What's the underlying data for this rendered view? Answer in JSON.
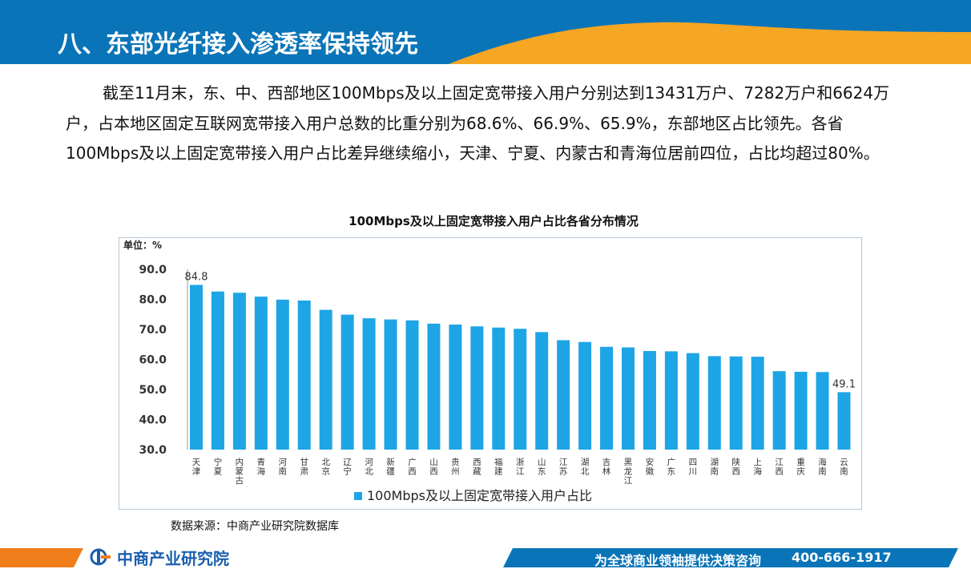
{
  "header": {
    "title": "八、东部光纤接入渗透率保持领先",
    "colors": {
      "blue": "#0a74b8",
      "orange": "#f5a623"
    }
  },
  "paragraph": "截至11月末，东、中、西部地区100Mbps及以上固定宽带接入用户分别达到13431万户、7282万户和6624万户，占本地区固定互联网宽带接入用户总数的比重分别为68.6%、66.9%、65.9%，东部地区占比领先。各省100Mbps及以上固定宽带接入用户占比差异继续缩小，天津、宁夏、内蒙古和青海位居前四位，占比均超过80%。",
  "chart_data": {
    "type": "bar",
    "title": "100Mbps及以上固定宽带接入用户占比各省分布情况",
    "unit_label": "单位：%",
    "categories": [
      "天津",
      "宁夏",
      "内蒙古",
      "青海",
      "河南",
      "甘肃",
      "北京",
      "辽宁",
      "河北",
      "新疆",
      "广西",
      "山西",
      "贵州",
      "西藏",
      "福建",
      "浙江",
      "山东",
      "江苏",
      "湖北",
      "吉林",
      "黑龙江",
      "安徽",
      "广东",
      "四川",
      "湖南",
      "陕西",
      "上海",
      "江西",
      "重庆",
      "海南",
      "云南"
    ],
    "values": [
      84.8,
      82.6,
      82.2,
      80.9,
      79.9,
      79.6,
      76.5,
      74.9,
      73.7,
      73.3,
      73.0,
      71.9,
      71.6,
      71.0,
      70.6,
      70.2,
      69.1,
      66.4,
      65.8,
      64.2,
      64.0,
      62.8,
      62.7,
      62.1,
      61.1,
      61.0,
      60.9,
      56.1,
      55.9,
      55.8,
      49.1
    ],
    "data_labels": [
      {
        "index": 0,
        "text": "84.8"
      },
      {
        "index": 30,
        "text": "49.1"
      }
    ],
    "y_ticks": [
      "90.0",
      "80.0",
      "70.0",
      "60.0",
      "50.0",
      "40.0",
      "30.0"
    ],
    "ylim": [
      30,
      90
    ],
    "series": [
      {
        "name": "100Mbps及以上固定宽带接入用户占比",
        "color": "#1ea5e5"
      }
    ],
    "legend_position": "bottom",
    "grid": false
  },
  "source": "数据来源：中商产业研究院数据库",
  "footer": {
    "brand": "中商产业研究院",
    "slogan": "为全球商业领袖提供决策咨询",
    "phone": "400-666-1917"
  }
}
